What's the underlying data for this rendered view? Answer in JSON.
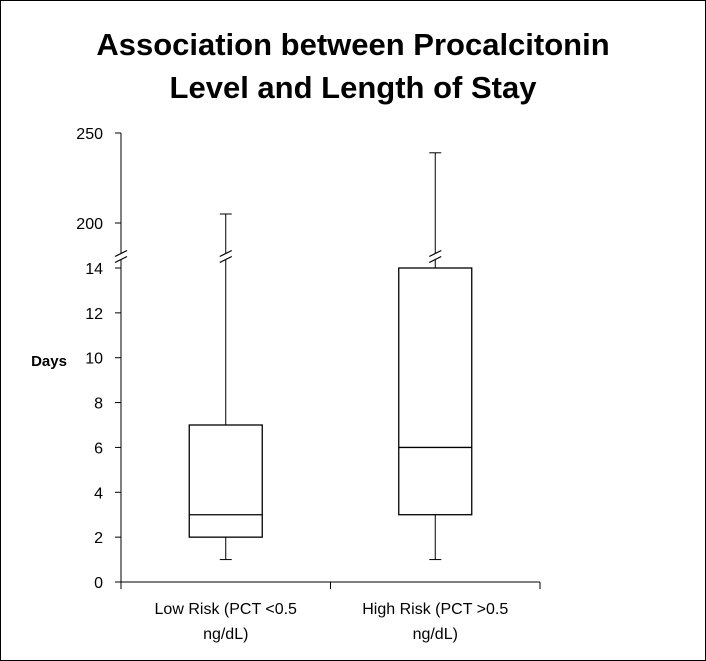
{
  "chart_data": {
    "type": "box",
    "title_lines": [
      "Association between Procalcitonin",
      "Level and Length of Stay"
    ],
    "ylabel": "Days",
    "y_scale": "broken",
    "y_segments": [
      {
        "range": [
          0,
          14
        ],
        "ticks": [
          "0",
          "2",
          "4",
          "6",
          "8",
          "10",
          "12",
          "14"
        ]
      },
      {
        "range": [
          200,
          250
        ],
        "ticks": [
          "200",
          "250"
        ]
      }
    ],
    "grid": false,
    "categories": [
      {
        "label_lines": [
          "Low Risk (PCT <0.5",
          "ng/dL)"
        ]
      },
      {
        "label_lines": [
          "High Risk (PCT >0.5",
          "ng/dL)"
        ]
      }
    ],
    "boxes": [
      {
        "whisker_low": 1,
        "q1": 2,
        "median": 3,
        "q3": 7,
        "whisker_high": 205
      },
      {
        "whisker_low": 1,
        "q1": 3,
        "median": 6,
        "q3": 14,
        "whisker_high": 239
      }
    ],
    "colors": {
      "stroke": "#000000",
      "fill": "#ffffff"
    }
  }
}
